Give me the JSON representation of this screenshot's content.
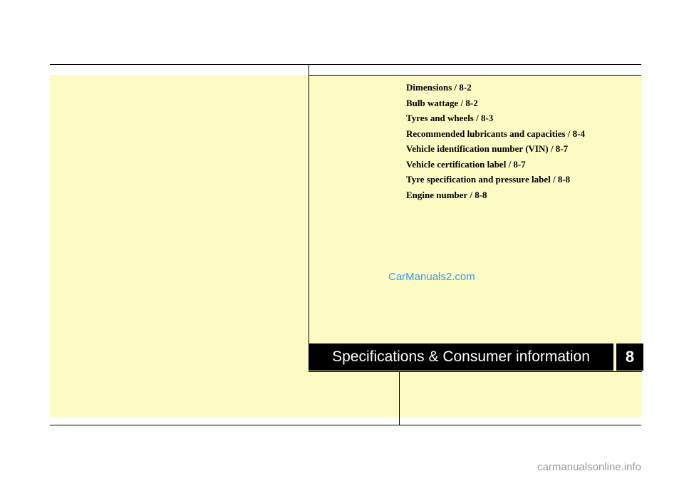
{
  "chapter": {
    "title": "Specifications & Consumer information",
    "number": "8"
  },
  "toc": {
    "items": [
      "Dimensions / 8-2",
      "Bulb wattage / 8-2",
      "Tyres and wheels / 8-3",
      "Recommended lubricants and capacities / 8-4",
      "Vehicle identification number (VIN) / 8-7",
      "Vehicle certification label / 8-7",
      "Tyre specification and pressure label / 8-8",
      "Engine number / 8-8"
    ]
  },
  "watermark": {
    "center": "CarManuals2.com",
    "footer": "carmanualsonline.info"
  },
  "colors": {
    "page_bg": "#fdfbc4",
    "text": "#000000",
    "chapter_bg": "#000000",
    "chapter_text": "#ffffff",
    "watermark_center": "#3399ff",
    "watermark_footer": "#999999"
  }
}
